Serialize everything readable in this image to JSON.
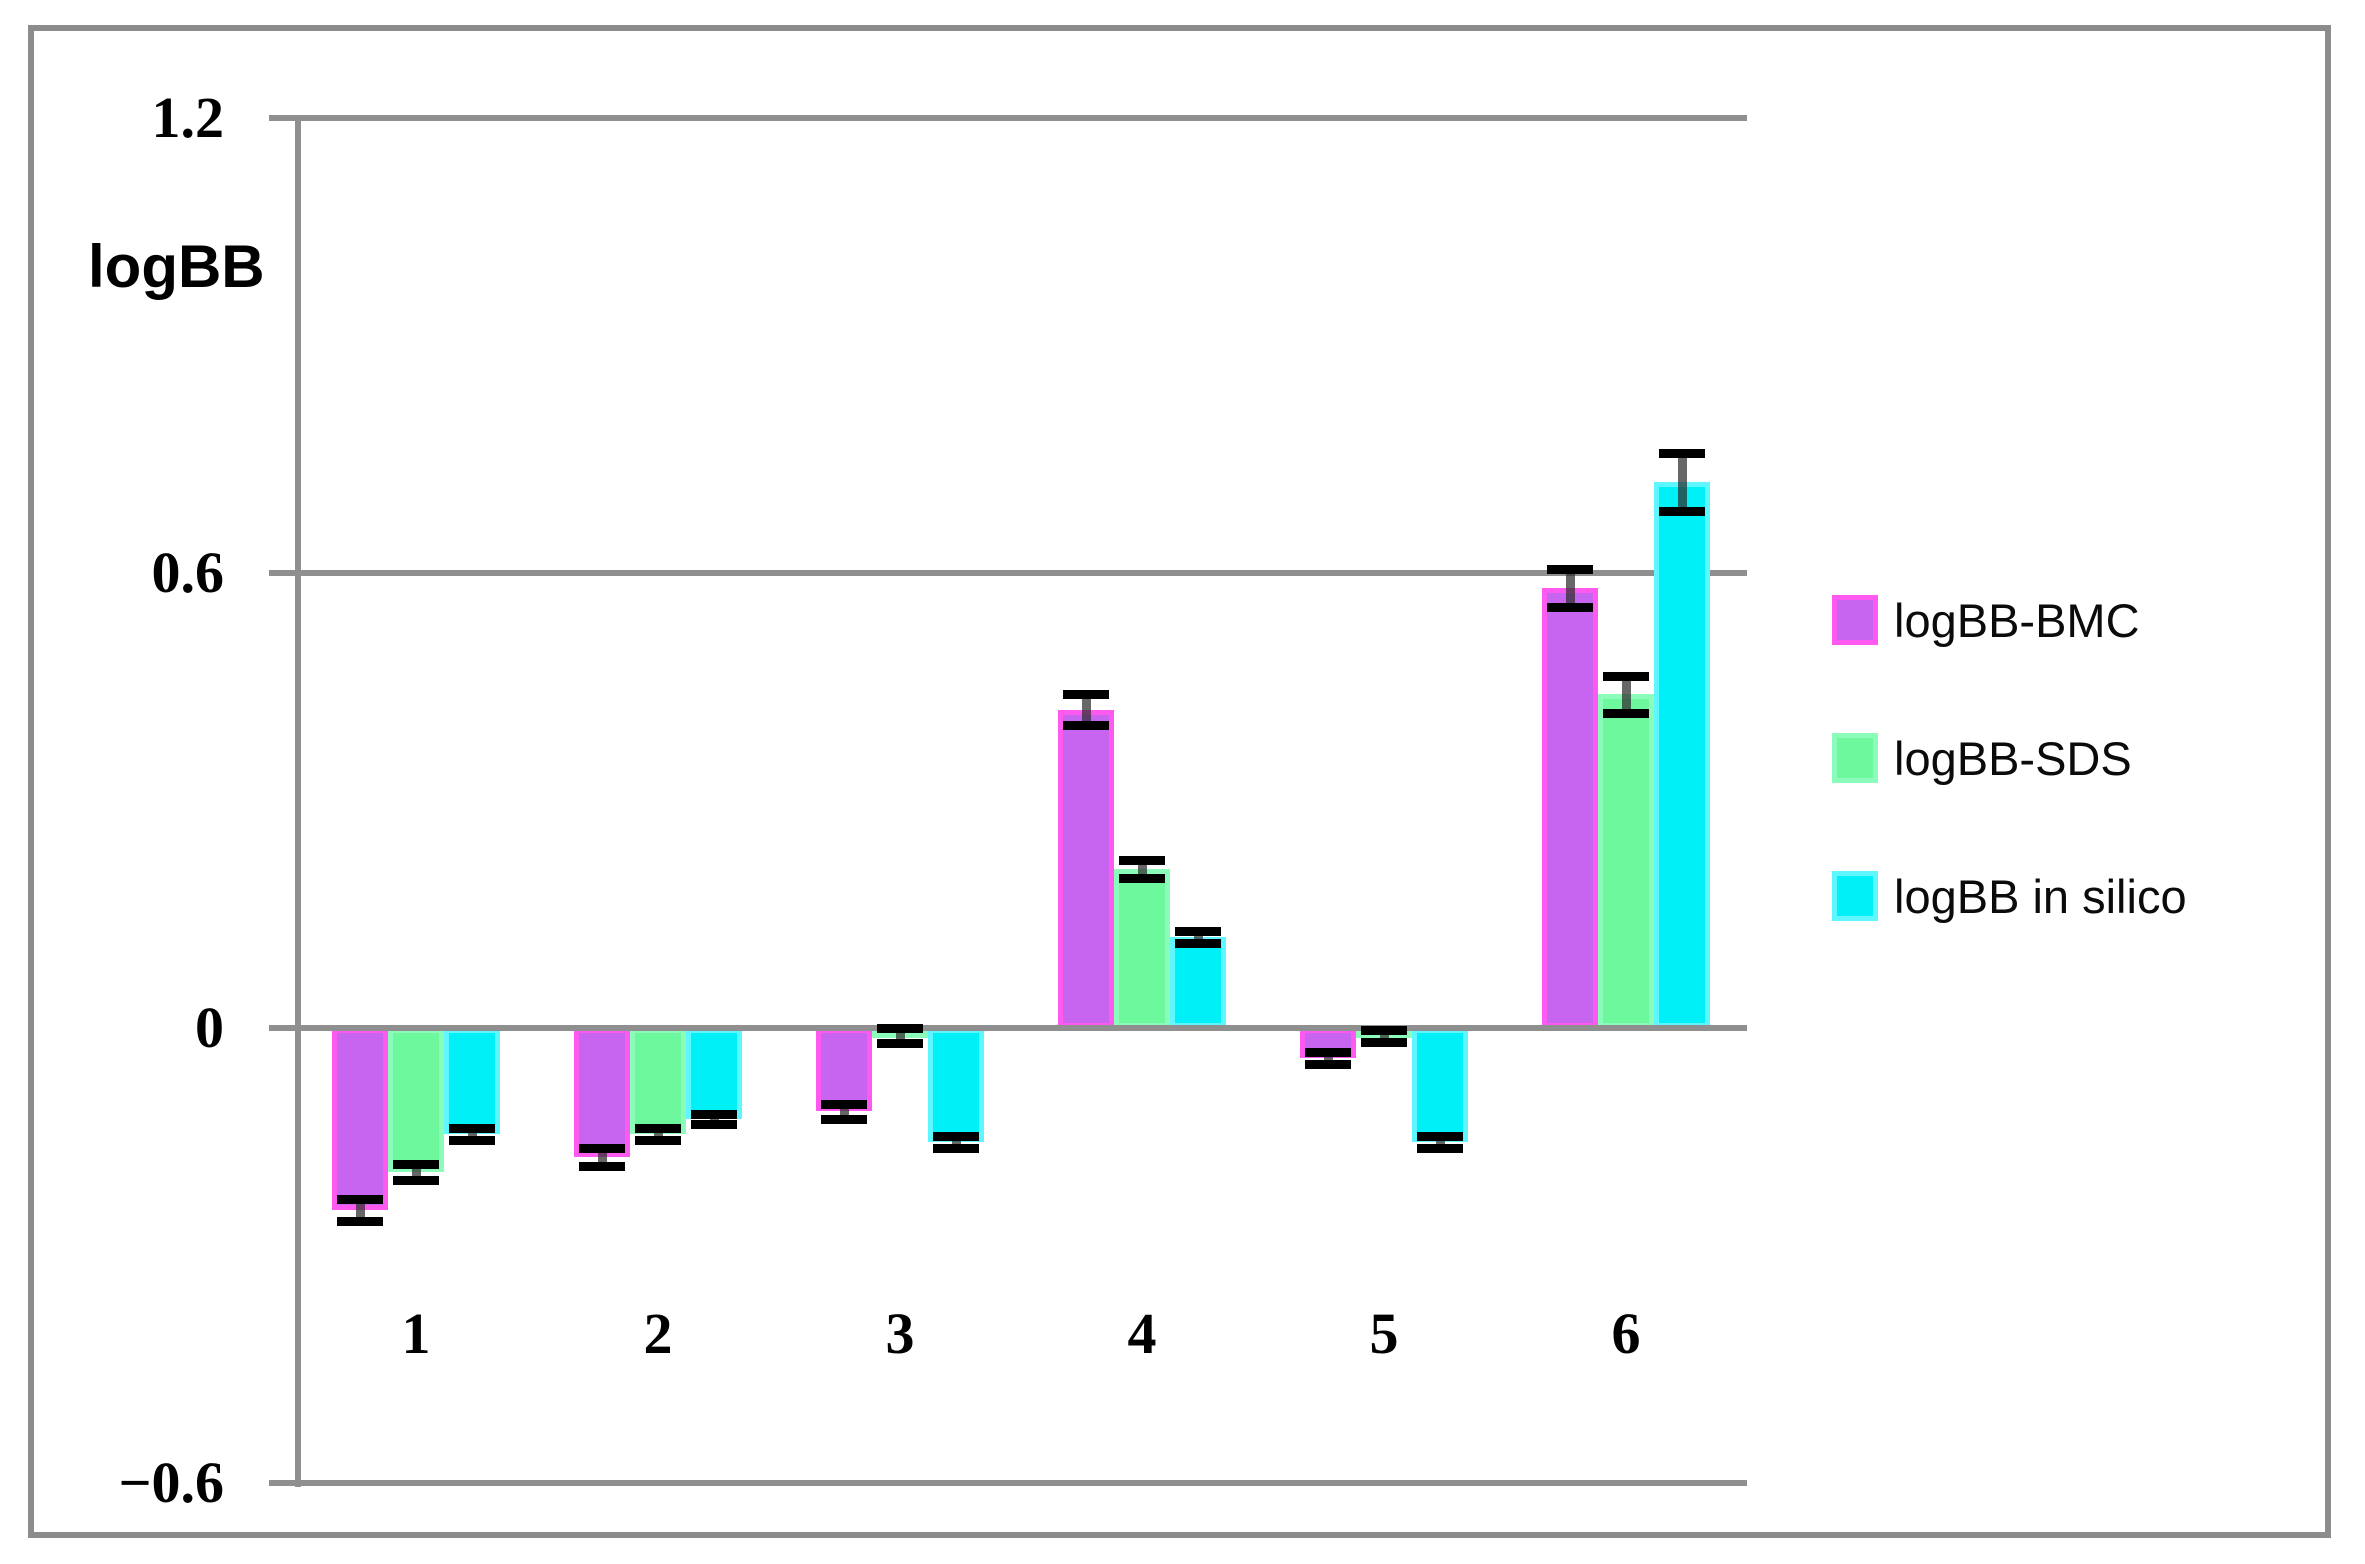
{
  "figure": {
    "background_color": "#ffffff",
    "border_color": "#8c8c8c"
  },
  "axis": {
    "y_title": "logBB",
    "grid_color": "#8f8f8f",
    "text_color": "#000000"
  },
  "chart_data": {
    "type": "bar",
    "title": "",
    "xlabel": "",
    "ylabel": "logBB",
    "categories": [
      "1",
      "2",
      "3",
      "4",
      "5",
      "6"
    ],
    "series": [
      {
        "name": "logBB-BMC",
        "color": "#c765f1",
        "border_color": "#ff5af0",
        "values": [
          -0.24,
          -0.17,
          -0.11,
          0.42,
          -0.04,
          0.58
        ],
        "errors": [
          0.015,
          0.012,
          0.01,
          0.02,
          0.008,
          0.025
        ]
      },
      {
        "name": "logBB-SDS",
        "color": "#6df89d",
        "border_color": "#8bfcba",
        "values": [
          -0.19,
          -0.14,
          -0.01,
          0.21,
          -0.01,
          0.44
        ],
        "errors": [
          0.01,
          0.008,
          0.01,
          0.012,
          0.008,
          0.024
        ]
      },
      {
        "name": "logBB in silico",
        "color": "#00f0f8",
        "border_color": "#5ff7ff",
        "values": [
          -0.14,
          -0.12,
          -0.15,
          0.12,
          -0.15,
          0.72
        ],
        "errors": [
          0.008,
          0.006,
          0.008,
          0.008,
          0.008,
          0.038
        ]
      }
    ],
    "y_ticks": [
      1.2,
      0.6,
      0,
      -0.6
    ],
    "y_tick_labels": [
      "1.2",
      "0.6",
      "0",
      "−0.6"
    ],
    "ylim": [
      -0.6,
      1.2
    ],
    "grid": true,
    "error_bars": true,
    "legend_position": "right"
  }
}
